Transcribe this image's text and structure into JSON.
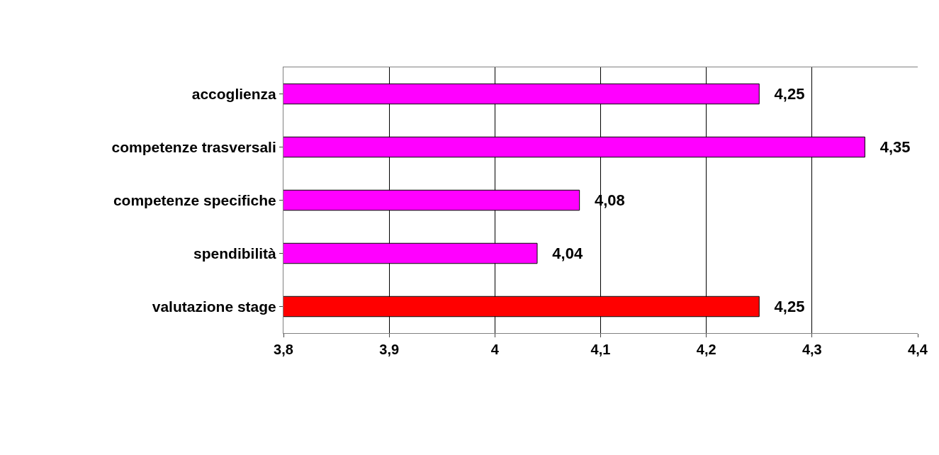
{
  "chart_data": {
    "type": "bar",
    "orientation": "horizontal",
    "categories": [
      "accoglienza",
      "competenze trasversali",
      "competenze specifiche",
      "spendibilità",
      "valutazione stage"
    ],
    "values": [
      4.25,
      4.35,
      4.08,
      4.04,
      4.25
    ],
    "colors": [
      "#ff00ff",
      "#ff00ff",
      "#ff00ff",
      "#ff00ff",
      "#ff0000"
    ],
    "value_labels": [
      "4,25",
      "4,35",
      "4,08",
      "4,04",
      "4,25"
    ],
    "xlim": [
      3.8,
      4.4
    ],
    "xticks": [
      {
        "value": 3.8,
        "label": "3,8"
      },
      {
        "value": 3.9,
        "label": "3,9"
      },
      4,
      {
        "value": 4.1,
        "label": "4,1"
      },
      {
        "value": 4.2,
        "label": "4,2"
      },
      {
        "value": 4.3,
        "label": "4,3"
      },
      {
        "value": 4.4,
        "label": "4,4"
      }
    ],
    "grid": "x"
  }
}
